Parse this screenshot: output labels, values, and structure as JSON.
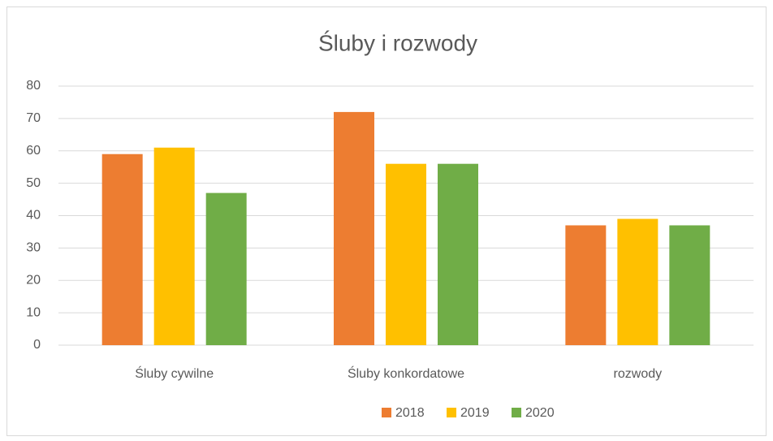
{
  "chart_data": {
    "type": "bar",
    "title": "Śluby i rozwody",
    "categories": [
      "Śluby cywilne",
      "Śluby konkordatowe",
      "rozwody"
    ],
    "series": [
      {
        "name": "2018",
        "color": "#ED7D31",
        "values": [
          59,
          72,
          37
        ]
      },
      {
        "name": "2019",
        "color": "#FFC000",
        "values": [
          61,
          56,
          39
        ]
      },
      {
        "name": "2020",
        "color": "#70AD47",
        "values": [
          47,
          56,
          37
        ]
      }
    ],
    "ylim": [
      0,
      80
    ],
    "yticks": [
      0,
      10,
      20,
      30,
      40,
      50,
      60,
      70,
      80
    ],
    "grid": true,
    "legend": "bottom"
  }
}
